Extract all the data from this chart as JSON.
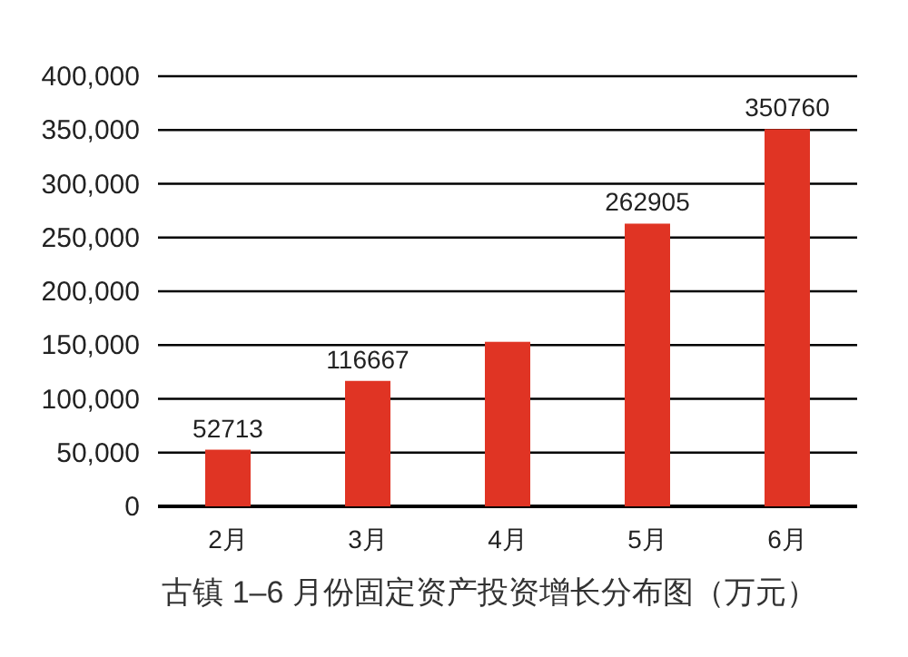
{
  "chart_data": {
    "type": "bar",
    "title": "古镇 1–6 月份固定资产投资增长分布图（万元）",
    "categories": [
      "2月",
      "3月",
      "4月",
      "5月",
      "6月"
    ],
    "values": [
      52713,
      116667,
      153000,
      262905,
      350760
    ],
    "value_labels": [
      "52713",
      "116667",
      null,
      "262905",
      "350760"
    ],
    "color": "#e03424",
    "ylim": [
      0,
      400000
    ],
    "yticks": [
      {
        "value": 0,
        "label": "0"
      },
      {
        "value": 50000,
        "label": "50,000"
      },
      {
        "value": 100000,
        "label": "100,000"
      },
      {
        "value": 150000,
        "label": "150,000"
      },
      {
        "value": 200000,
        "label": "200,000"
      },
      {
        "value": 250000,
        "label": "250,000"
      },
      {
        "value": 300000,
        "label": "300,000"
      },
      {
        "value": 350000,
        "label": "350,000"
      },
      {
        "value": 400000,
        "label": "400,000"
      }
    ],
    "grid": "y"
  }
}
